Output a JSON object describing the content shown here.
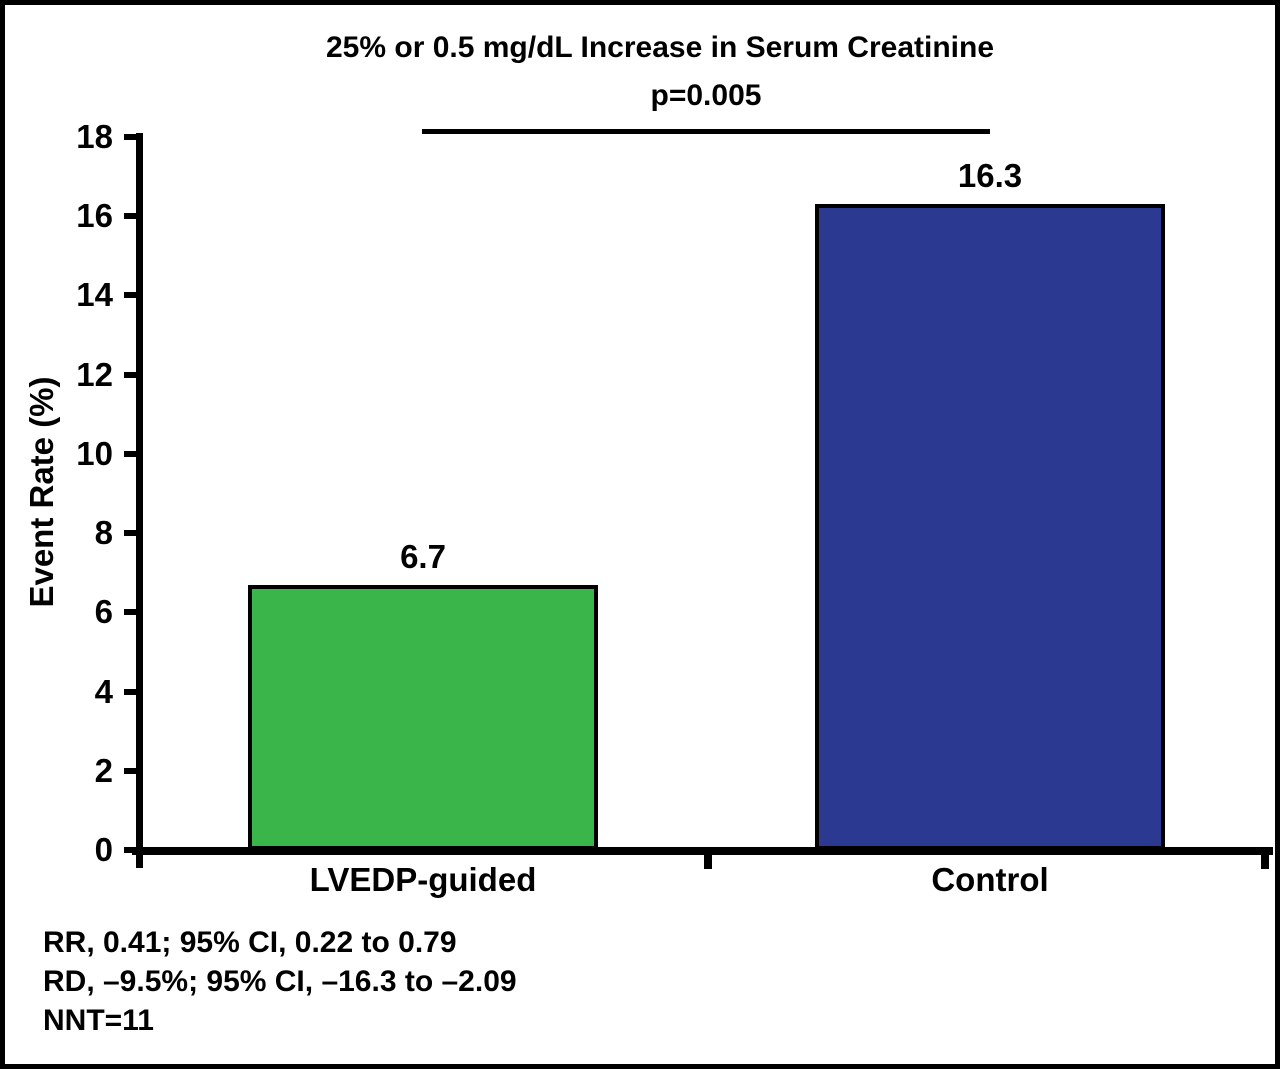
{
  "chart_data": {
    "type": "bar",
    "title": "25% or 0.5 mg/dL Increase in Serum Creatinine",
    "categories": [
      "LVEDP-guided",
      "Control"
    ],
    "values": [
      6.7,
      16.3
    ],
    "value_labels": [
      "6.7",
      "16.3"
    ],
    "bar_colors": [
      "#39B54A",
      "#2B3990"
    ],
    "xlabel": "",
    "ylabel": "Event Rate (%)",
    "ylim": [
      0,
      18
    ],
    "yticks": [
      0,
      2,
      4,
      6,
      8,
      10,
      12,
      14,
      16,
      18
    ],
    "grid": false,
    "legend": false,
    "significance_bar": {
      "label": "p=0.005",
      "between": [
        "LVEDP-guided",
        "Control"
      ]
    },
    "annotations": [
      "RR, 0.41; 95% CI, 0.22 to 0.79",
      "RD, –9.5%; 95% CI, –16.3 to –2.09",
      "NNT=11"
    ],
    "colors": {
      "axis": "#000000",
      "text": "#000000",
      "background": "#ffffff"
    }
  }
}
